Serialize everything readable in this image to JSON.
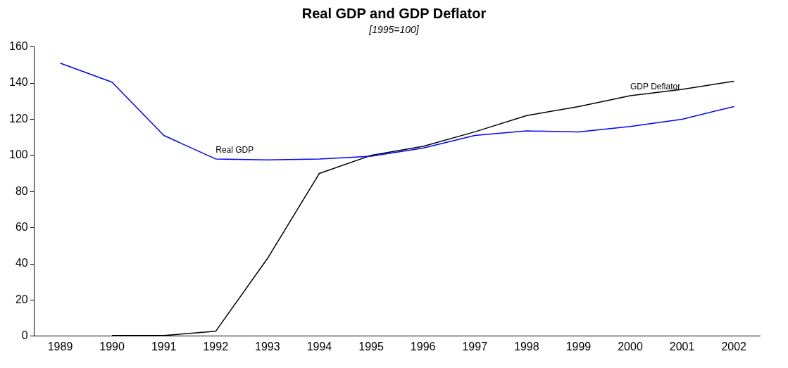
{
  "chart_data": {
    "type": "line",
    "title": "Real GDP and GDP Deflator",
    "subtitle": "[1995=100]",
    "categories": [
      "1989",
      "1990",
      "1991",
      "1992",
      "1993",
      "1994",
      "1995",
      "1996",
      "1997",
      "1998",
      "1999",
      "2000",
      "2001",
      "2002"
    ],
    "series": [
      {
        "name": "Real GDP",
        "color": "#0000ff",
        "values": [
          151,
          140.5,
          111,
          98,
          97.5,
          98,
          99.5,
          104,
          111,
          113.5,
          113,
          116,
          120,
          127
        ]
      },
      {
        "name": "GDP Deflator",
        "color": "#000000",
        "values": [
          null,
          0.4,
          0.4,
          2.7,
          43,
          90,
          100,
          105,
          113,
          122,
          127,
          133,
          136.5,
          141
        ]
      }
    ],
    "ylim": [
      0,
      160
    ],
    "yticks": [
      0,
      20,
      40,
      60,
      80,
      100,
      120,
      140,
      160
    ],
    "grid": false,
    "legend": false,
    "marker": "none",
    "line_style": "solid"
  }
}
